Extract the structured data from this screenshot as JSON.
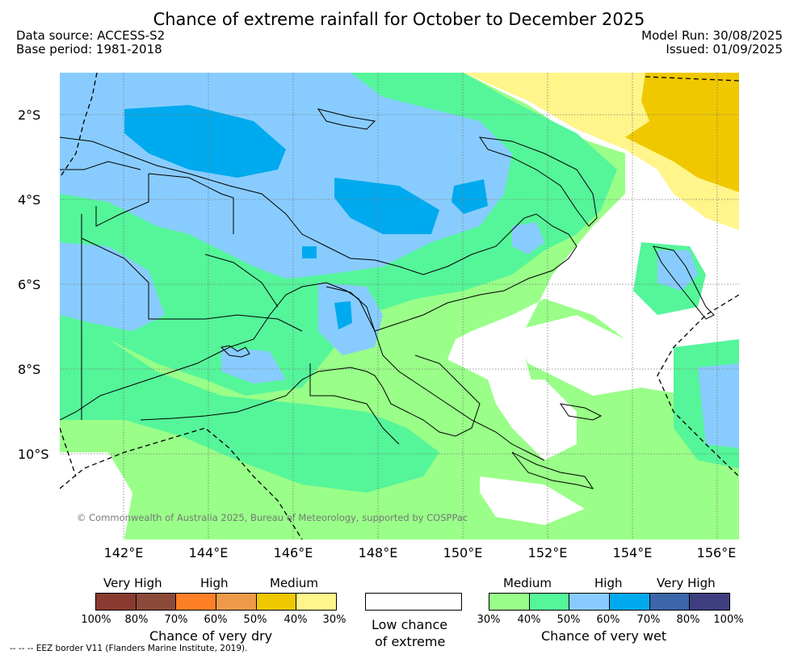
{
  "title": "Chance of extreme rainfall for October to December 2025",
  "header": {
    "data_source": "Data source: ACCESS-S2",
    "base_period": "Base period: 1981-2018",
    "model_run": "Model Run: 30/08/2025",
    "issued": "Issued: 01/09/2025"
  },
  "axes": {
    "lat_labels": [
      "2°S",
      "4°S",
      "6°S",
      "8°S",
      "10°S"
    ],
    "lon_labels": [
      "142°E",
      "144°E",
      "146°E",
      "148°E",
      "150°E",
      "152°E",
      "154°E",
      "156°E"
    ]
  },
  "credit": "© Commonwealth of Australia 2025, Bureau of Meteorology, supported by COSPPac",
  "legend": {
    "dry": {
      "levels": [
        "Very High",
        "High",
        "Medium"
      ],
      "ticks": [
        "100%",
        "80%",
        "70%",
        "60%",
        "50%",
        "40%",
        "30%"
      ],
      "colors": [
        "#8b3a32",
        "#8b4a3a",
        "#ff7f27",
        "#ee9a4a",
        "#f0c800",
        "#fff58a"
      ],
      "caption": "Chance of very dry"
    },
    "low": {
      "caption_line1": "Low chance",
      "caption_line2": "of extreme"
    },
    "wet": {
      "levels": [
        "Medium",
        "High",
        "Very High"
      ],
      "ticks": [
        "30%",
        "40%",
        "50%",
        "60%",
        "70%",
        "80%",
        "100%"
      ],
      "colors": [
        "#99ff88",
        "#55f59a",
        "#88ccff",
        "#00aaee",
        "#3b66aa",
        "#3f3f80"
      ],
      "caption": "Chance of very wet"
    }
  },
  "footnote": "--  --  -- EEZ border V11 (Flanders Marine Institute, 2019)."
}
